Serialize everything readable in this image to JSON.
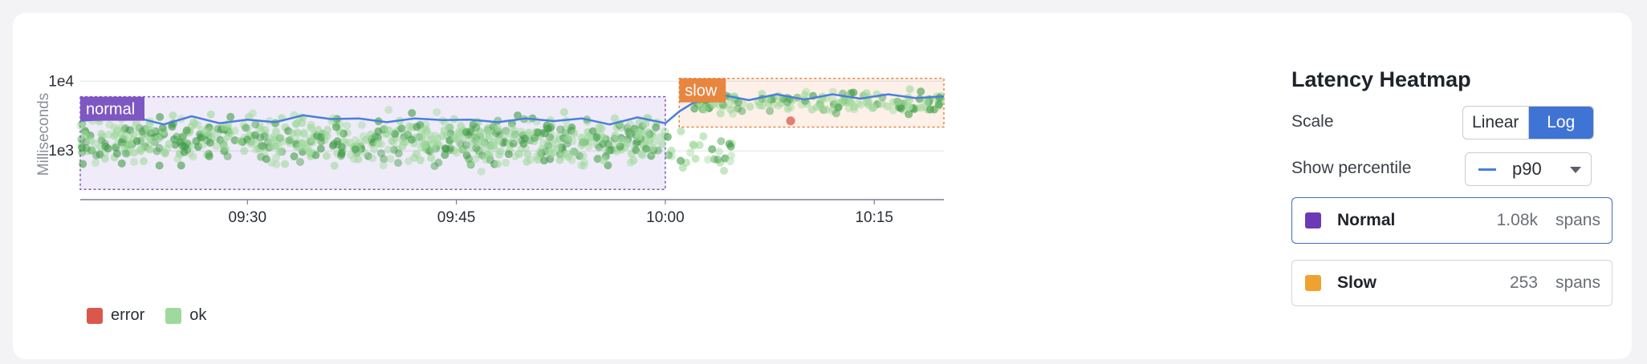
{
  "chart_data": {
    "type": "scatter",
    "title": "",
    "ylabel": "Milliseconds",
    "xlabel": "",
    "y_scale": "log",
    "ylim": [
      200,
      15000
    ],
    "xlim": [
      "09:18",
      "10:20"
    ],
    "x_ticks": [
      "09:30",
      "09:45",
      "10:00",
      "10:15"
    ],
    "y_ticks": [
      {
        "value": 1000,
        "label": "1e3"
      },
      {
        "value": 10000,
        "label": "1e4"
      }
    ],
    "grid": true,
    "legend": {
      "placement": "bottom-left",
      "entries": [
        {
          "name": "error",
          "color": "#d9584b"
        },
        {
          "name": "ok",
          "color": "#9fd99b"
        }
      ]
    },
    "regions": [
      {
        "label": "normal",
        "x_start": "09:18",
        "x_end": "10:00",
        "y_min": 280,
        "y_max": 6000,
        "color": "#7e57c2"
      },
      {
        "label": "slow",
        "x_start": "10:01",
        "x_end": "10:20",
        "y_min": 2200,
        "y_max": 11000,
        "color": "#e8853f"
      }
    ],
    "series": [
      {
        "name": "p90",
        "type": "line",
        "color": "#4a7fdc",
        "x": [
          "09:18",
          "09:20",
          "09:22",
          "09:24",
          "09:26",
          "09:28",
          "09:30",
          "09:32",
          "09:34",
          "09:36",
          "09:38",
          "09:40",
          "09:42",
          "09:44",
          "09:46",
          "09:48",
          "09:50",
          "09:52",
          "09:54",
          "09:56",
          "09:58",
          "10:00",
          "10:01",
          "10:02",
          "10:04",
          "10:06",
          "10:08",
          "10:10",
          "10:12",
          "10:14",
          "10:16",
          "10:18",
          "10:20"
        ],
        "y": [
          2500,
          3100,
          2800,
          2600,
          2900,
          2700,
          2600,
          2800,
          3000,
          3100,
          2700,
          2800,
          2700,
          3000,
          2600,
          2800,
          2700,
          2900,
          2700,
          2600,
          2800,
          2700,
          3400,
          5300,
          5900,
          5800,
          6000,
          5900,
          6000,
          6100,
          6000,
          6200,
          5600
        ]
      },
      {
        "name": "error",
        "type": "scatter",
        "color": "#d9584b",
        "x": [
          "10:09"
        ],
        "y": [
          2700
        ]
      }
    ],
    "clusters": [
      {
        "series": "ok",
        "x_start": "09:18",
        "x_end": "10:00",
        "y_min": 450,
        "y_max": 4500,
        "count": 1080
      },
      {
        "series": "ok",
        "x_start": "10:00",
        "x_end": "10:05",
        "y_min": 380,
        "y_max": 2500,
        "count": 40
      },
      {
        "series": "ok",
        "x_start": "10:02",
        "x_end": "10:20",
        "y_min": 3000,
        "y_max": 8500,
        "count": 253
      }
    ]
  },
  "panel": {
    "title": "Latency Heatmap",
    "scale_label": "Scale",
    "scale_options": [
      "Linear",
      "Log"
    ],
    "scale_selected": "Log",
    "percentile_label": "Show percentile",
    "percentile_value": "p90",
    "groups": [
      {
        "name": "Normal",
        "count": "1.08k",
        "unit": "spans",
        "color": "#6a39b3",
        "border": "#3d6fb6"
      },
      {
        "name": "Slow",
        "count": "253",
        "unit": "spans",
        "color": "#f0a230",
        "border": "#d2d5dc"
      }
    ]
  }
}
